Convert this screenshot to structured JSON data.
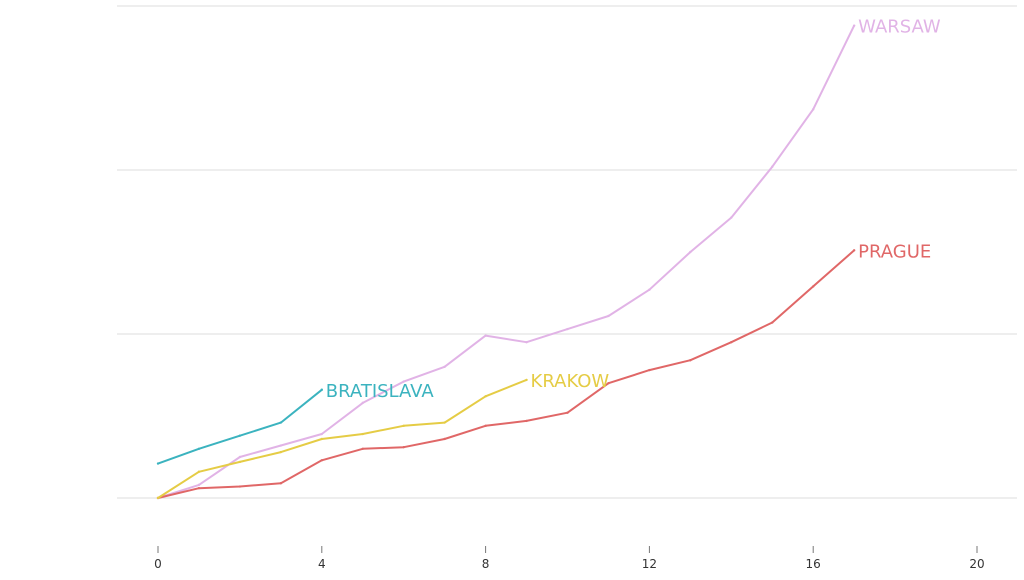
{
  "chart_data": {
    "type": "line",
    "title": "",
    "xlabel": "",
    "ylabel": "",
    "xlim": [
      0,
      20
    ],
    "ylim": [
      0,
      3
    ],
    "x_ticks": [
      "0",
      "4",
      "8",
      "12",
      "16",
      "20"
    ],
    "grid": "horizontal",
    "legend": "direct labels at line ends",
    "series": [
      {
        "name": "WARSAW",
        "color": "#e1b3e6",
        "x": [
          0,
          1,
          2,
          3,
          4,
          5,
          6,
          7,
          8,
          9,
          10,
          11,
          12,
          13,
          14,
          15,
          16,
          17
        ],
        "y": [
          0.0,
          0.08,
          0.25,
          0.32,
          0.39,
          0.58,
          0.71,
          0.8,
          0.99,
          0.95,
          1.03,
          1.11,
          1.27,
          1.5,
          1.71,
          2.02,
          2.37,
          2.88
        ]
      },
      {
        "name": "PRAGUE",
        "color": "#e06767",
        "x": [
          0,
          1,
          2,
          3,
          4,
          5,
          6,
          7,
          8,
          9,
          10,
          11,
          12,
          13,
          14,
          15,
          16,
          17
        ],
        "y": [
          0.0,
          0.06,
          0.07,
          0.09,
          0.23,
          0.3,
          0.31,
          0.36,
          0.44,
          0.47,
          0.52,
          0.7,
          0.78,
          0.84,
          0.95,
          1.07,
          1.29,
          1.51
        ]
      },
      {
        "name": "KRAKOW",
        "color": "#e5cc45",
        "x": [
          0,
          1,
          2,
          3,
          4,
          5,
          6,
          7,
          8,
          9
        ],
        "y": [
          0.0,
          0.16,
          0.22,
          0.28,
          0.36,
          0.39,
          0.44,
          0.46,
          0.62,
          0.72
        ]
      },
      {
        "name": "BRATISLAVA",
        "color": "#3bb3bf",
        "x": [
          0,
          1,
          2,
          3,
          4
        ],
        "y": [
          0.21,
          0.3,
          0.38,
          0.46,
          0.66
        ]
      }
    ]
  }
}
